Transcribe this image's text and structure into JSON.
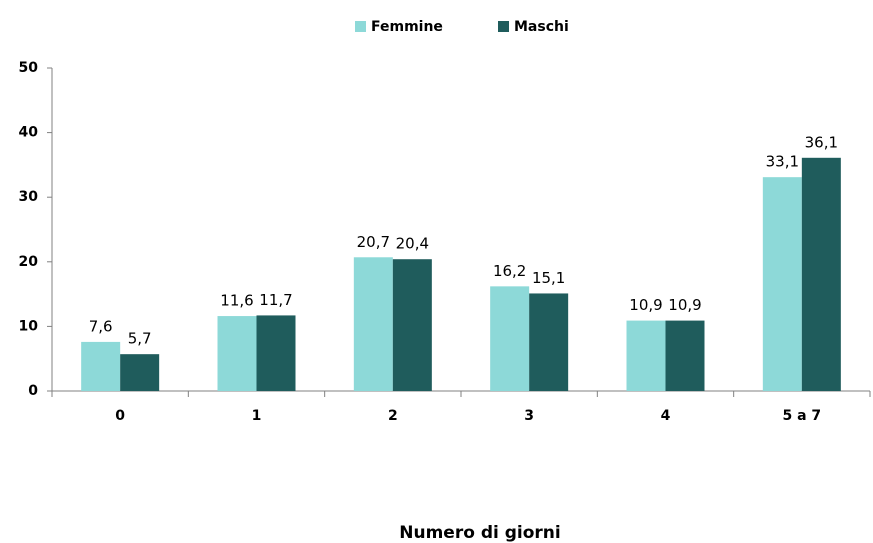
{
  "chart_data": {
    "type": "bar",
    "categories": [
      "0",
      "1",
      "2",
      "3",
      "4",
      "5 a 7"
    ],
    "series": [
      {
        "name": "Femmine",
        "color": "#8dd9d8",
        "values": [
          7.6,
          11.6,
          20.7,
          16.2,
          10.9,
          33.1
        ],
        "value_labels": [
          "7,6",
          "11,6",
          "20,7",
          "16,2",
          "10,9",
          "33,1"
        ]
      },
      {
        "name": "Maschi",
        "color": "#1f5c5c",
        "values": [
          5.7,
          11.7,
          20.4,
          15.1,
          10.9,
          36.1
        ],
        "value_labels": [
          "5,7",
          "11,7",
          "20,4",
          "15,1",
          "10,9",
          "36,1"
        ]
      }
    ],
    "xlabel": "Numero di giorni",
    "ylim": [
      0,
      50
    ],
    "yticks": [
      0,
      10,
      20,
      30,
      40,
      50
    ],
    "grid": false,
    "legend": "top"
  }
}
